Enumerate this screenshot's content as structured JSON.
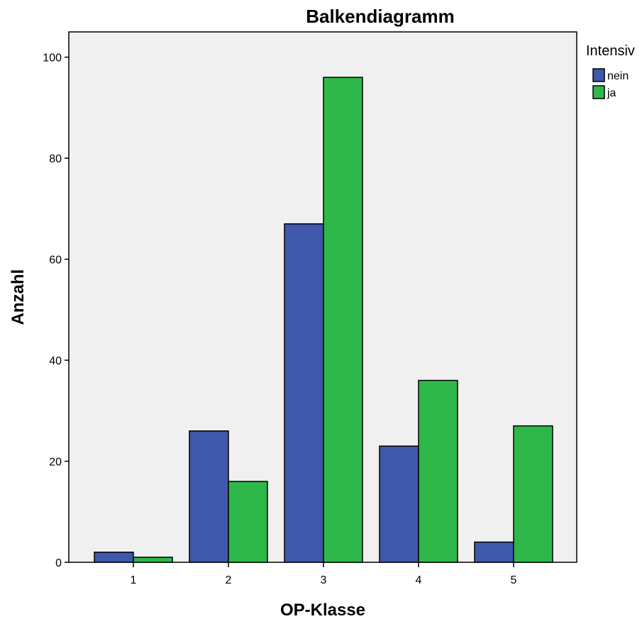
{
  "chart_data": {
    "type": "bar",
    "title": "Balkendiagramm",
    "xlabel": "OP-Klasse",
    "ylabel": "Anzahl",
    "categories": [
      "1",
      "2",
      "3",
      "4",
      "5"
    ],
    "series": [
      {
        "name": "nein",
        "values": [
          2,
          26,
          67,
          23,
          4
        ],
        "color": "#3f58ab"
      },
      {
        "name": "ja",
        "values": [
          1,
          16,
          96,
          36,
          27
        ],
        "color": "#2fb84a"
      }
    ],
    "ylim": [
      0,
      105
    ],
    "yticks": [
      0,
      20,
      40,
      60,
      80,
      100
    ],
    "legend": {
      "title": "Intensiv",
      "position": "top-right-outside"
    },
    "grid": false,
    "plot_background": "#f0f0f0"
  }
}
